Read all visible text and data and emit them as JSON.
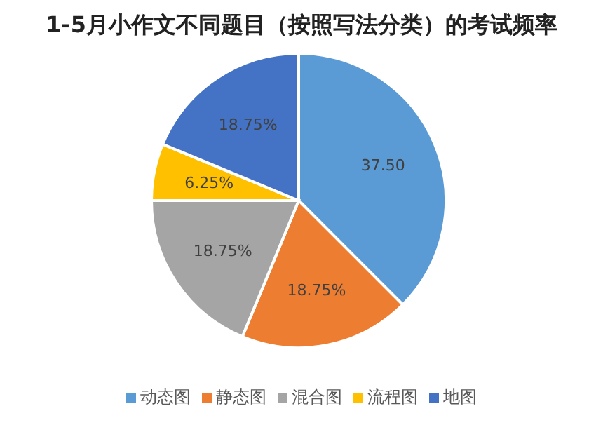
{
  "chart_data": {
    "type": "pie",
    "title": "1-5月小作文不同题目（按照写法分类）的考试频率",
    "categories": [
      "动态图",
      "静态图",
      "混合图",
      "流程图",
      "地图"
    ],
    "values": [
      37.5,
      18.75,
      18.75,
      6.25,
      18.75
    ],
    "colors": [
      "#5b9bd5",
      "#ed7d31",
      "#a5a5a5",
      "#ffc000",
      "#4472c4"
    ],
    "value_labels": [
      "37.50",
      "18.75%",
      "18.75%",
      "6.25%",
      "18.75%"
    ],
    "legend": "bottom"
  }
}
